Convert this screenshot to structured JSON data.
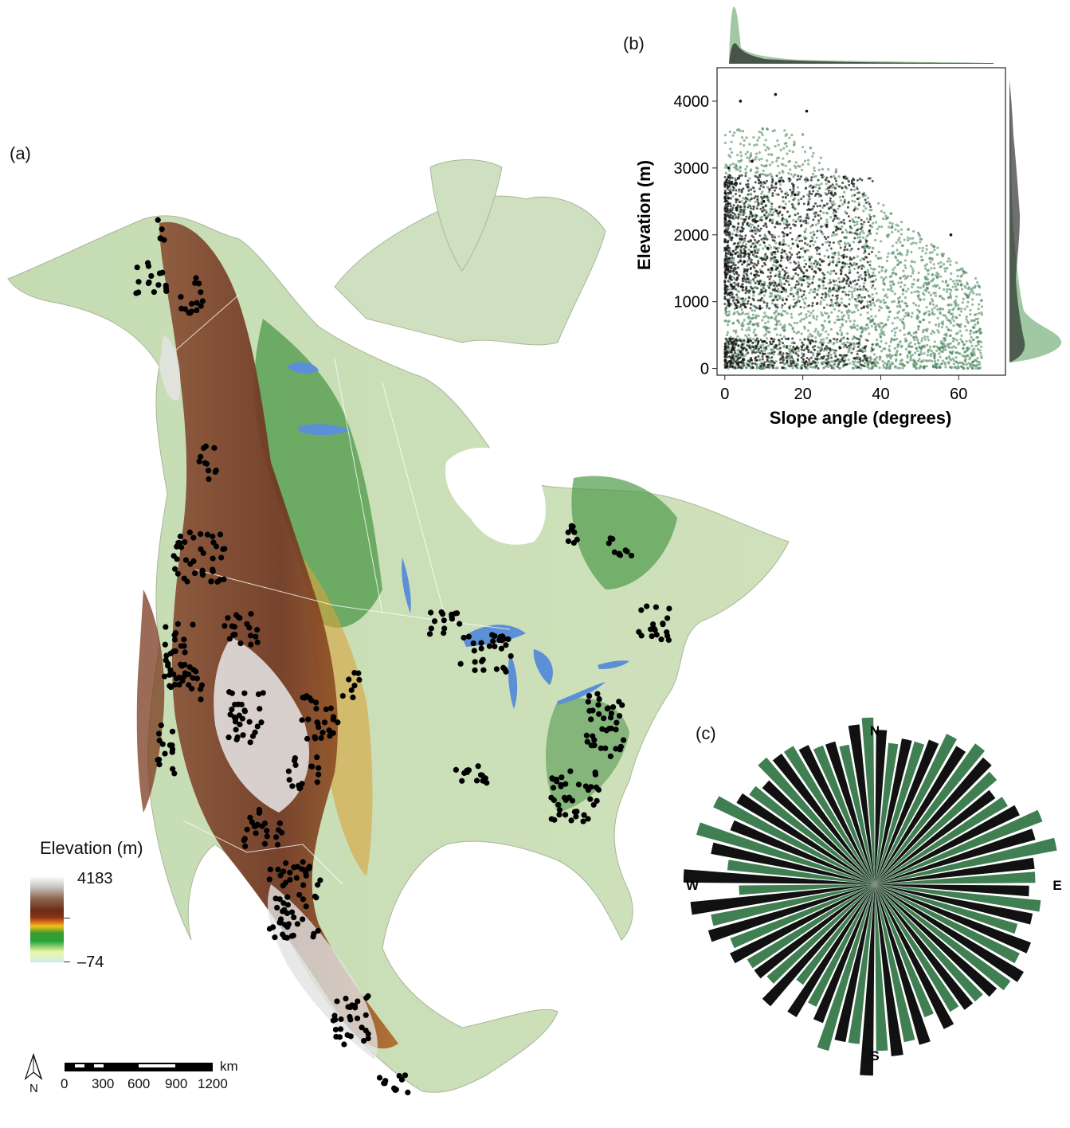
{
  "panels": {
    "a": "(a)",
    "b": "(b)",
    "c": "(c)"
  },
  "legend": {
    "title": "Elevation (m)",
    "max_label": "4183",
    "min_label": "–74"
  },
  "scale_bar": {
    "labels": [
      "0",
      "300",
      "600",
      "900",
      "1200"
    ],
    "unit": "km"
  },
  "north_arrow": {
    "label": "N",
    "icon": "north-arrow-icon"
  },
  "colors": {
    "ocean": "#ffffff",
    "lowland": "#c6dcb4",
    "forest_green": "#4e9a4a",
    "mountain_brown": "#7b3b20",
    "high_peaks": "#e6e6e6",
    "lakes": "#5b8fd6",
    "points": "#000000",
    "green_series": "#3f7f52",
    "black_series": "#111111"
  },
  "chart_data": [
    {
      "type": "scatter",
      "xlabel": "Slope angle (degrees)",
      "ylabel": "Elevation (m)",
      "xlim": [
        -2,
        72
      ],
      "ylim": [
        -100,
        4500
      ],
      "xticks": [
        0,
        20,
        40,
        60
      ],
      "yticks": [
        0,
        1000,
        2000,
        3000,
        4000
      ],
      "series": [
        {
          "color": "#3f7f52",
          "note_visible": false
        },
        {
          "color": "#111111",
          "note_visible": false
        }
      ],
      "sample_points_green": [
        [
          5,
          300
        ],
        [
          10,
          1200
        ],
        [
          15,
          2500
        ],
        [
          20,
          1800
        ],
        [
          25,
          800
        ],
        [
          30,
          1500
        ],
        [
          35,
          600
        ],
        [
          40,
          1000
        ],
        [
          45,
          400
        ],
        [
          50,
          700
        ],
        [
          55,
          300
        ],
        [
          60,
          900
        ],
        [
          62,
          1100
        ],
        [
          65,
          400
        ],
        [
          12,
          3200
        ],
        [
          18,
          2900
        ],
        [
          22,
          3300
        ],
        [
          28,
          2600
        ],
        [
          33,
          2200
        ],
        [
          38,
          1800
        ],
        [
          42,
          2000
        ],
        [
          48,
          1600
        ],
        [
          52,
          1200
        ],
        [
          57,
          1500
        ],
        [
          20,
          3500
        ],
        [
          8,
          500
        ],
        [
          26,
          300
        ],
        [
          44,
          200
        ]
      ],
      "sample_points_black": [
        [
          2,
          300
        ],
        [
          4,
          250
        ],
        [
          6,
          400
        ],
        [
          8,
          2200
        ],
        [
          10,
          2500
        ],
        [
          12,
          1500
        ],
        [
          14,
          2800
        ],
        [
          5,
          1600
        ],
        [
          3,
          2400
        ],
        [
          16,
          2000
        ],
        [
          18,
          2600
        ],
        [
          1,
          3000
        ],
        [
          7,
          3100
        ],
        [
          11,
          1800
        ],
        [
          15,
          1200
        ],
        [
          9,
          900
        ],
        [
          4,
          4000
        ],
        [
          13,
          4100
        ],
        [
          21,
          3850
        ],
        [
          58,
          2000
        ]
      ],
      "marginal": "density"
    },
    {
      "type": "rose",
      "directions": [
        "N",
        "E",
        "S",
        "W"
      ],
      "bins_deg": 10,
      "series": [
        {
          "color": "#3f7f52",
          "values": [
            1.35,
            1.15,
            1.2,
            1.35,
            1.4,
            1.3,
            1.25,
            1.45,
            1.5,
            1.3,
            1.35,
            1.2,
            1.3,
            1.35,
            1.25,
            1.2,
            1.15,
            1.3,
            1.35,
            1.3,
            1.4,
            1.1,
            1.0,
            1.15,
            1.2,
            1.25,
            1.35,
            1.1,
            1.2,
            1.5,
            1.45,
            1.25,
            1.35,
            1.3,
            1.2,
            1.15
          ]
        },
        {
          "color": "#111111",
          "values": [
            1.25,
            1.2,
            1.25,
            1.3,
            1.35,
            1.2,
            1.3,
            1.35,
            1.3,
            1.25,
            1.3,
            1.35,
            1.4,
            1.3,
            1.25,
            1.3,
            1.35,
            1.4,
            1.55,
            1.3,
            1.2,
            1.25,
            1.3,
            1.2,
            1.3,
            1.4,
            1.5,
            1.55,
            1.35,
            1.25,
            1.3,
            1.2,
            1.3,
            1.25,
            1.2,
            1.3
          ]
        }
      ]
    }
  ]
}
